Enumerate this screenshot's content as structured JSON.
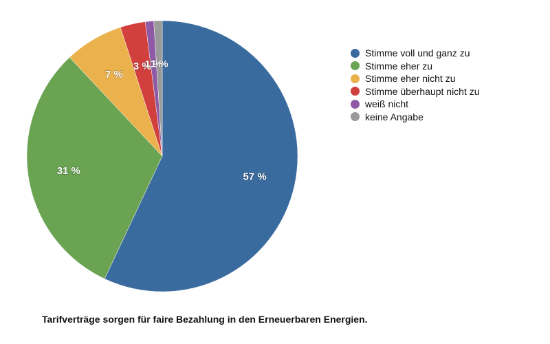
{
  "chart_data": {
    "type": "pie",
    "title": "Tarifverträge sorgen für faire Bezahlung in den Erneuerbaren Energien.",
    "legend_position": "right",
    "slices": [
      {
        "label": "Stimme voll und ganz zu",
        "value": 57,
        "value_label": "57 %",
        "color": "#3a6b9e"
      },
      {
        "label": "Stimme eher zu",
        "value": 31,
        "value_label": "31 %",
        "color": "#6aa453"
      },
      {
        "label": "Stimme eher nicht zu",
        "value": 7,
        "value_label": "7 %",
        "color": "#ebb14d"
      },
      {
        "label": "Stimme überhaupt nicht zu",
        "value": 3,
        "value_label": "3 %",
        "color": "#d2403d"
      },
      {
        "label": "weiß nicht",
        "value": 1,
        "value_label": "1 %",
        "color": "#8e5aa5"
      },
      {
        "label": "keine Angabe",
        "value": 1,
        "value_label": "1 %",
        "color": "#9a9a9a"
      }
    ]
  }
}
